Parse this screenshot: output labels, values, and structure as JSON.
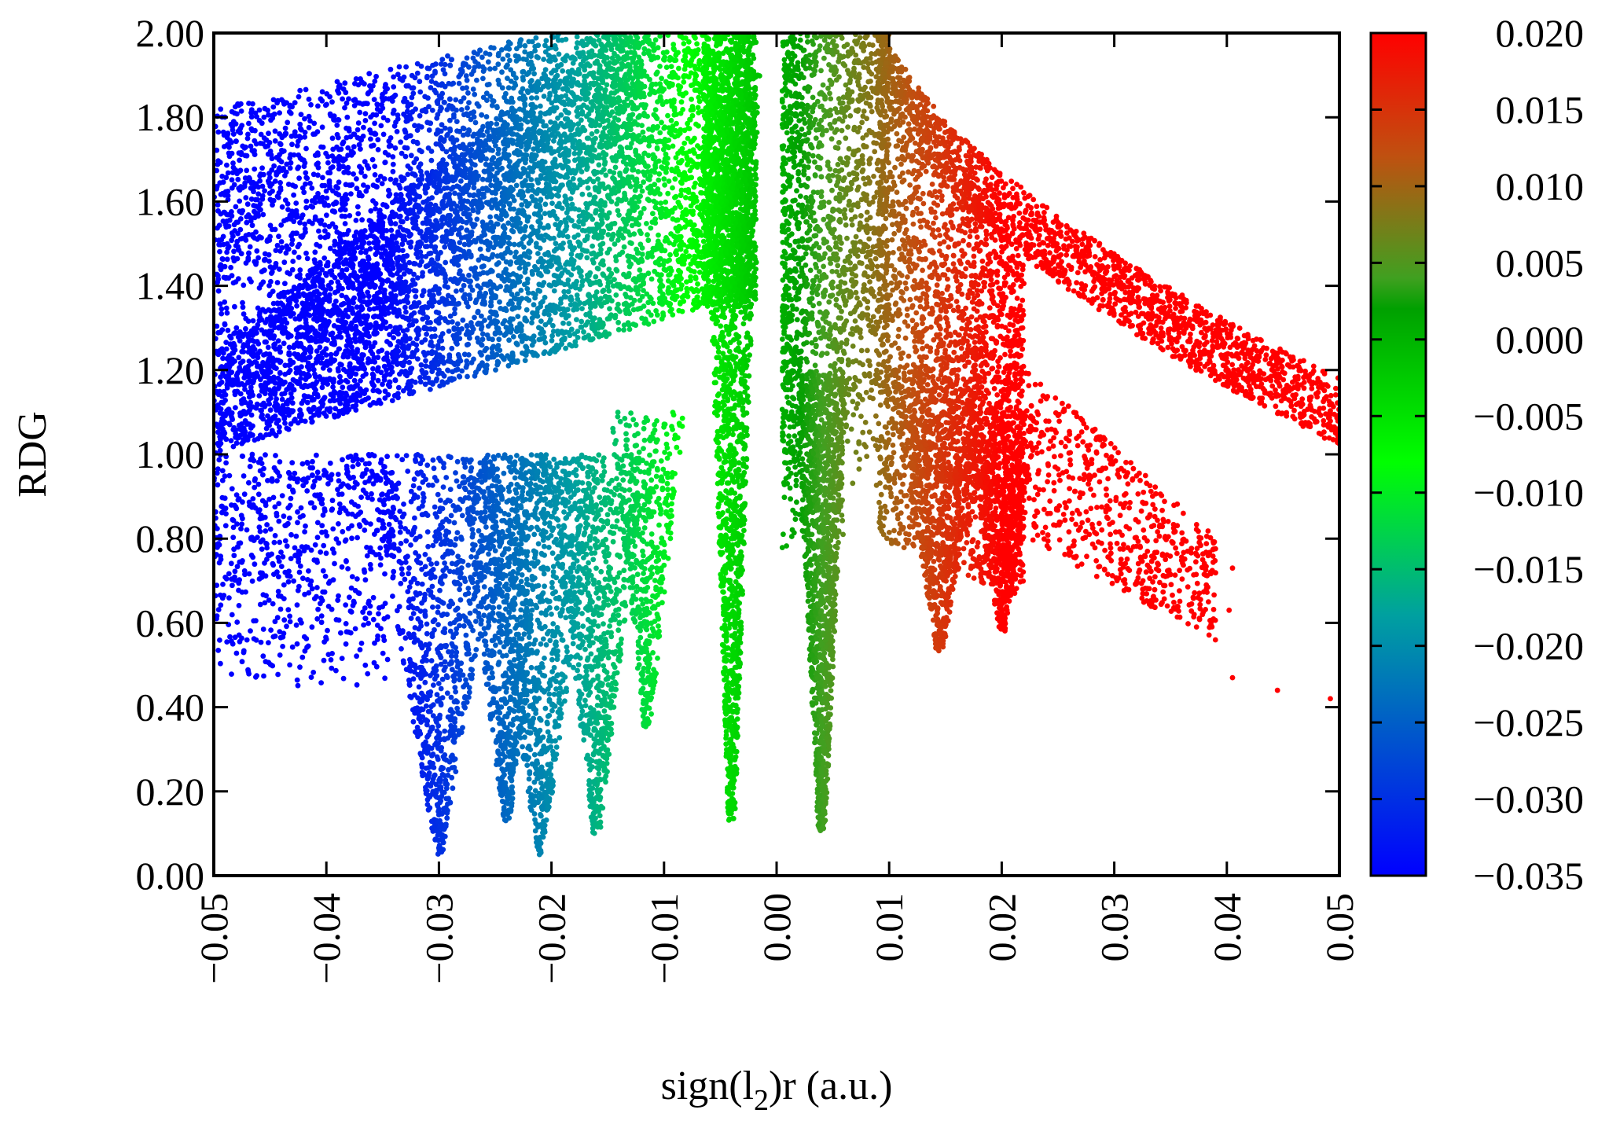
{
  "chart_data": {
    "type": "scatter",
    "title": "",
    "xlabel": "sign(l",
    "xlabel_subscript": "2",
    "xlabel_suffix": ")r (a.u.)",
    "ylabel": "RDG",
    "xlim": [
      -0.05,
      0.05
    ],
    "ylim": [
      0.0,
      2.0
    ],
    "x_ticks": [
      "−0.05",
      "−0.04",
      "−0.03",
      "−0.02",
      "−0.01",
      "0.00",
      "0.01",
      "0.02",
      "0.03",
      "0.04",
      "0.05"
    ],
    "y_ticks": [
      "0.00",
      "0.20",
      "0.40",
      "0.60",
      "0.80",
      "1.00",
      "1.20",
      "1.40",
      "1.60",
      "1.80",
      "2.00"
    ],
    "grid": false,
    "colorbar": {
      "range": [
        -0.035,
        0.02
      ],
      "ticks": [
        "0.020",
        "0.015",
        "0.010",
        "0.005",
        "0.000",
        "−0.005",
        "−0.010",
        "−0.015",
        "−0.020",
        "−0.025",
        "−0.030",
        "−0.035"
      ],
      "stops": [
        {
          "value": -0.035,
          "color": "#0000ff"
        },
        {
          "value": -0.018,
          "color": "#00a0a0"
        },
        {
          "value": -0.008,
          "color": "#00ff00"
        },
        {
          "value": 0.002,
          "color": "#00a000"
        },
        {
          "value": 0.004,
          "color": "#40a020"
        },
        {
          "value": 0.012,
          "color": "#c05010"
        },
        {
          "value": 0.02,
          "color": "#ff0000"
        }
      ]
    },
    "point_regions": [
      {
        "name": "upper-left-band",
        "x_min": -0.05,
        "x_max": -0.012,
        "rdg_low_at_xmin": 1.0,
        "rdg_low_at_xmax": 1.85,
        "rdg_high": 2.0,
        "density": 0.9
      },
      {
        "name": "main-left-wedge",
        "x_min": -0.05,
        "x_max": -0.002,
        "rdg_low_at_xmin": 1.0,
        "rdg_low_at_xmax": 1.35,
        "rdg_high_at_xmin": 1.25,
        "rdg_high_at_xmax": 2.0,
        "density": 1.0
      },
      {
        "name": "left-spike-1",
        "x_center": -0.03,
        "rdg_min": 0.05
      },
      {
        "name": "left-spike-2",
        "x_center": -0.024,
        "rdg_min": 0.13
      },
      {
        "name": "left-spike-3",
        "x_center": -0.021,
        "rdg_min": 0.05
      },
      {
        "name": "left-spike-4",
        "x_center": -0.016,
        "rdg_min": 0.1
      },
      {
        "name": "left-spike-5",
        "x_center": -0.004,
        "rdg_min": 0.13
      },
      {
        "name": "central-spike",
        "x_center": 0.004,
        "rdg_min": 0.1
      },
      {
        "name": "right-spike-1",
        "x_center": 0.0145,
        "rdg_min": 0.53
      },
      {
        "name": "right-spike-2",
        "x_center": 0.02,
        "rdg_min": 0.58
      },
      {
        "name": "upper-right-band",
        "x_min": 0.009,
        "x_max": 0.05,
        "rdg_at_xmin": 2.0,
        "rdg_at_xmax": 1.1
      },
      {
        "name": "lower-right-band",
        "x_min": 0.012,
        "x_max": 0.04,
        "rdg_at_xmin": 1.3,
        "rdg_at_xmax": 0.65
      }
    ]
  }
}
